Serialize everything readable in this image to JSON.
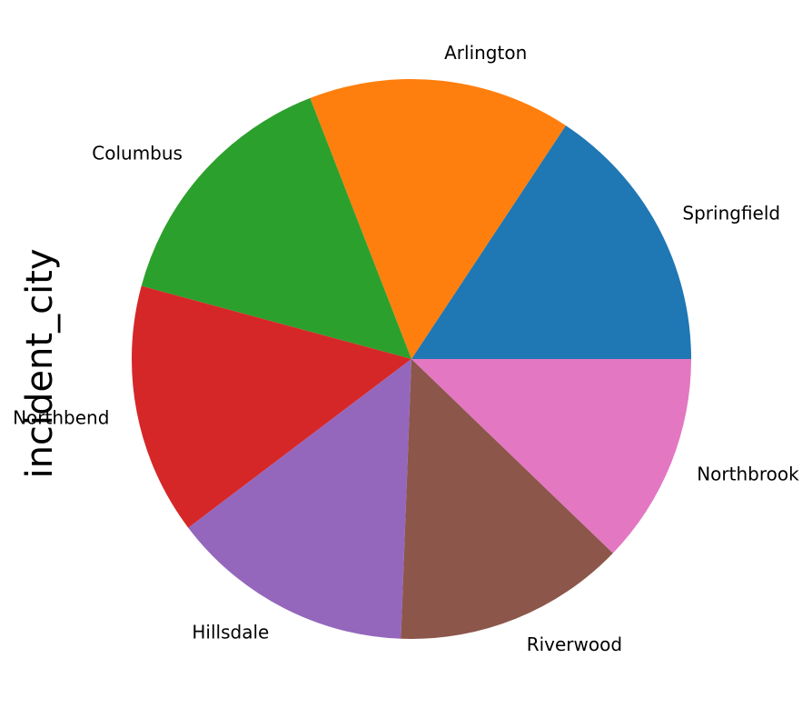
{
  "chart_data": {
    "type": "pie",
    "ylabel": "incident_city",
    "title": "",
    "slices": [
      {
        "label": "Springfield",
        "value": 157,
        "color": "#1f77b4"
      },
      {
        "label": "Arlington",
        "value": 152,
        "color": "#ff7f0e"
      },
      {
        "label": "Columbus",
        "value": 149,
        "color": "#2ca02c"
      },
      {
        "label": "Northbend",
        "value": 145,
        "color": "#d62728"
      },
      {
        "label": "Hillsdale",
        "value": 141,
        "color": "#9467bd"
      },
      {
        "label": "Riverwood",
        "value": 134,
        "color": "#8c564b"
      },
      {
        "label": "Northbrook",
        "value": 122,
        "color": "#e377c2"
      }
    ],
    "start_angle_deg": 0,
    "direction": "counterclockwise"
  }
}
